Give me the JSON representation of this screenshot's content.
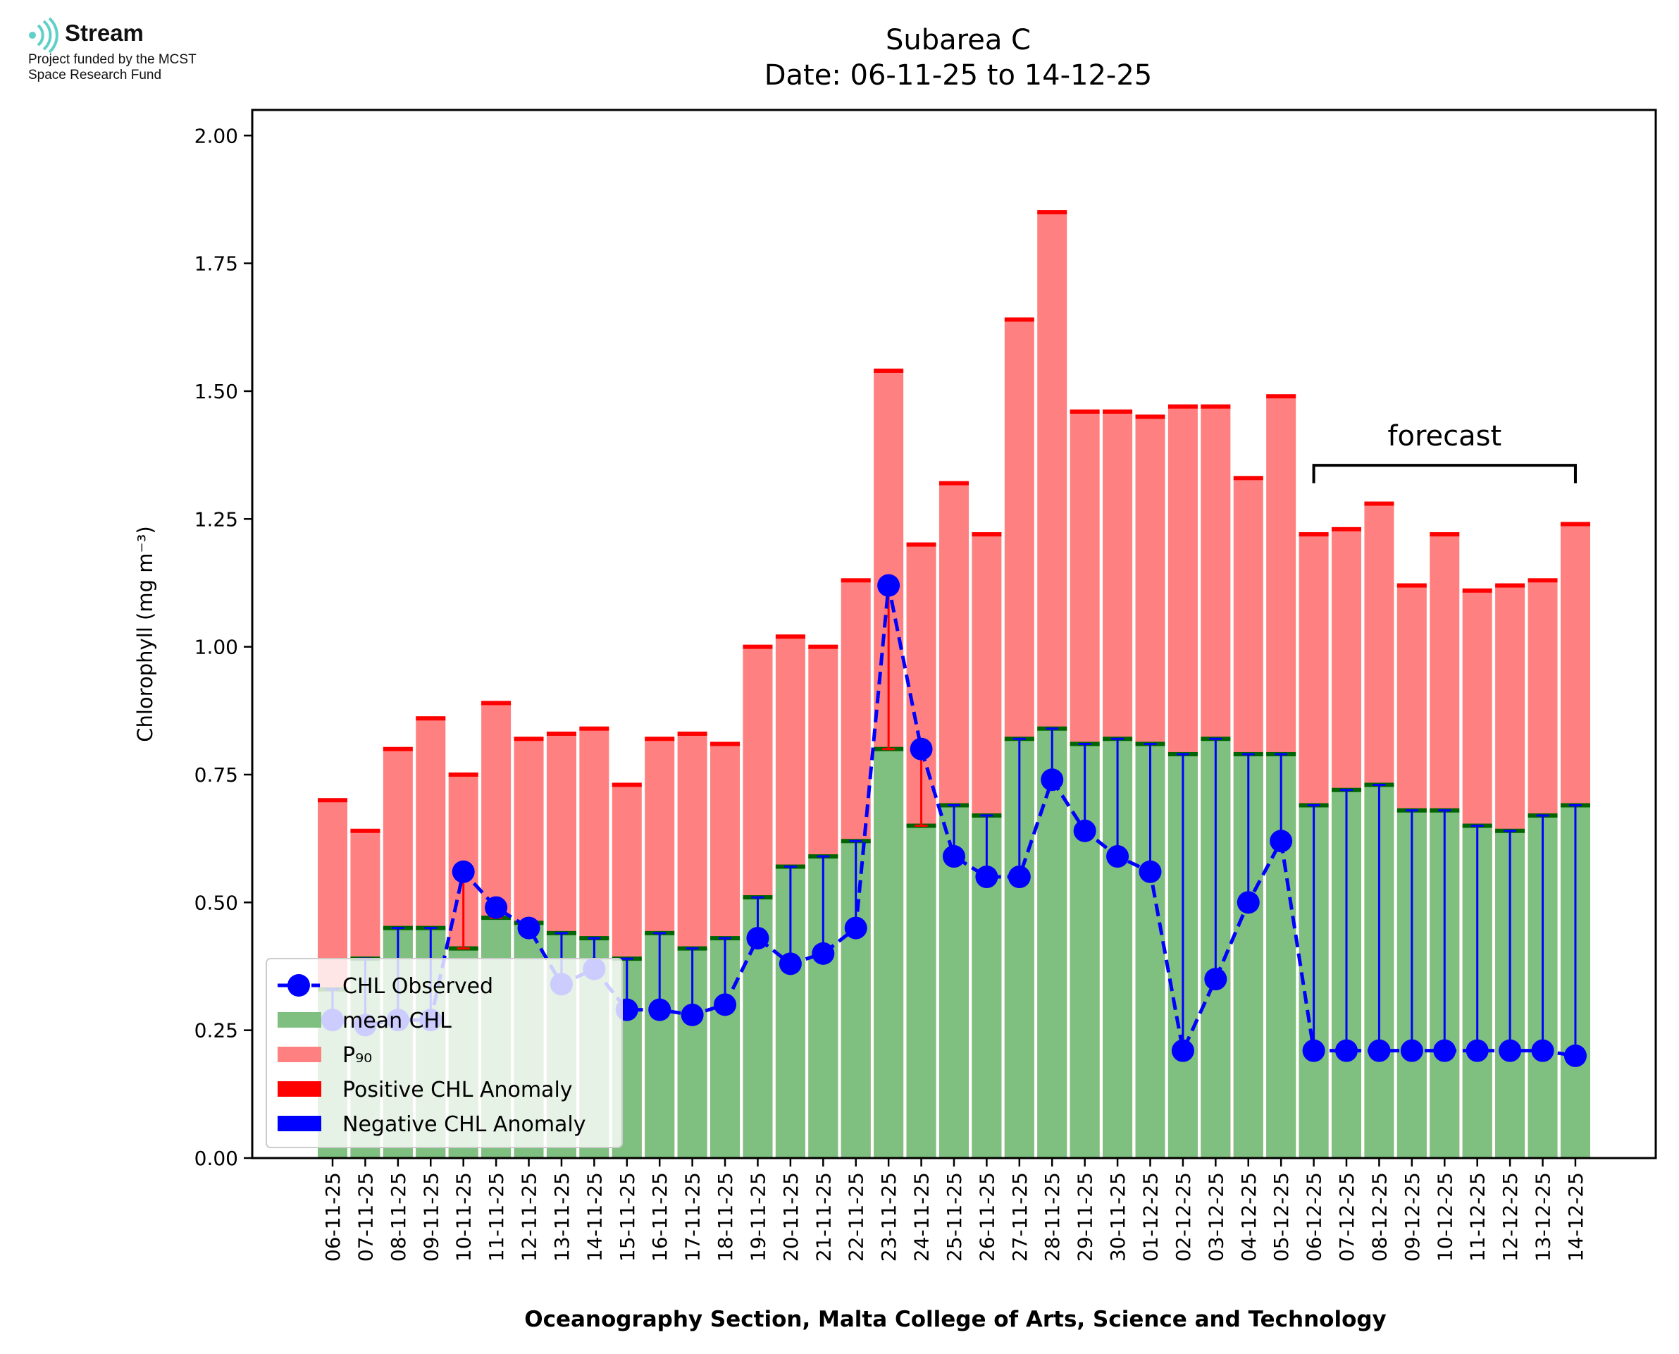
{
  "logo": {
    "name": "Stream",
    "funding_line1": "Project funded by the MCST",
    "funding_line2": "Space Research Fund",
    "icon": "stream-logo-icon",
    "color": "#5fd0c8"
  },
  "chart_data": {
    "type": "bar",
    "title": "Subarea C",
    "subtitle": "Date: 06-11-25 to 14-12-25",
    "xlabel": "Oceanography Section, Malta College of Arts, Science and Technology",
    "ylabel": "Chlorophyll (mg m⁻³)",
    "ylim": [
      0,
      2.05
    ],
    "yticks": [
      "0.00",
      "0.25",
      "0.50",
      "0.75",
      "1.00",
      "1.25",
      "1.50",
      "1.75",
      "2.00"
    ],
    "categories": [
      "06-11-25",
      "07-11-25",
      "08-11-25",
      "09-11-25",
      "10-11-25",
      "11-11-25",
      "12-11-25",
      "13-11-25",
      "14-11-25",
      "15-11-25",
      "16-11-25",
      "17-11-25",
      "18-11-25",
      "19-11-25",
      "20-11-25",
      "21-11-25",
      "22-11-25",
      "23-11-25",
      "24-11-25",
      "25-11-25",
      "26-11-25",
      "27-11-25",
      "28-11-25",
      "29-11-25",
      "30-11-25",
      "01-12-25",
      "02-12-25",
      "03-12-25",
      "04-12-25",
      "05-12-25",
      "06-12-25",
      "07-12-25",
      "08-12-25",
      "09-12-25",
      "10-12-25",
      "11-12-25",
      "12-12-25",
      "13-12-25",
      "14-12-25"
    ],
    "series": [
      {
        "name": "mean CHL",
        "color": "#7fbf7f",
        "values": [
          0.33,
          0.39,
          0.45,
          0.45,
          0.41,
          0.47,
          0.46,
          0.44,
          0.43,
          0.39,
          0.44,
          0.41,
          0.43,
          0.51,
          0.57,
          0.59,
          0.62,
          0.8,
          0.65,
          0.69,
          0.67,
          0.82,
          0.84,
          0.81,
          0.82,
          0.81,
          0.79,
          0.82,
          0.79,
          0.79,
          0.69,
          0.72,
          0.73,
          0.68,
          0.68,
          0.65,
          0.64,
          0.67,
          0.69
        ]
      },
      {
        "name": "P₉₀",
        "color": "#ff8080",
        "values": [
          0.7,
          0.64,
          0.8,
          0.86,
          0.75,
          0.89,
          0.82,
          0.83,
          0.84,
          0.73,
          0.82,
          0.83,
          0.81,
          1.0,
          1.02,
          1.0,
          1.13,
          1.54,
          1.2,
          1.32,
          1.22,
          1.64,
          1.85,
          1.46,
          1.46,
          1.45,
          1.47,
          1.47,
          1.33,
          1.49,
          1.22,
          1.23,
          1.28,
          1.12,
          1.22,
          1.11,
          1.12,
          1.13,
          1.24
        ]
      },
      {
        "name": "CHL Observed",
        "color": "#0000ff",
        "values": [
          0.27,
          0.26,
          0.27,
          0.27,
          0.56,
          0.49,
          0.45,
          0.34,
          0.37,
          0.29,
          0.29,
          0.28,
          0.3,
          0.43,
          0.38,
          0.4,
          0.45,
          1.12,
          0.8,
          0.59,
          0.55,
          0.55,
          0.74,
          0.64,
          0.59,
          0.56,
          0.21,
          0.35,
          0.5,
          0.62,
          0.21,
          0.21,
          0.21,
          0.21,
          0.21,
          0.21,
          0.21,
          0.21,
          0.2
        ]
      }
    ],
    "anomaly_series": {
      "positive": "Positive CHL Anomaly",
      "negative": "Negative CHL Anomaly",
      "positive_color": "#ff0000",
      "negative_color": "#0000ff",
      "mean_cap_color": "#006400"
    },
    "legend": {
      "position": "lower-left",
      "entries": [
        "CHL Observed",
        "mean CHL",
        "P₉₀",
        "Positive CHL Anomaly",
        "Negative CHL Anomaly"
      ]
    },
    "annotation": {
      "text": "forecast",
      "from_category": "06-12-25",
      "to_category": "14-12-25"
    }
  }
}
